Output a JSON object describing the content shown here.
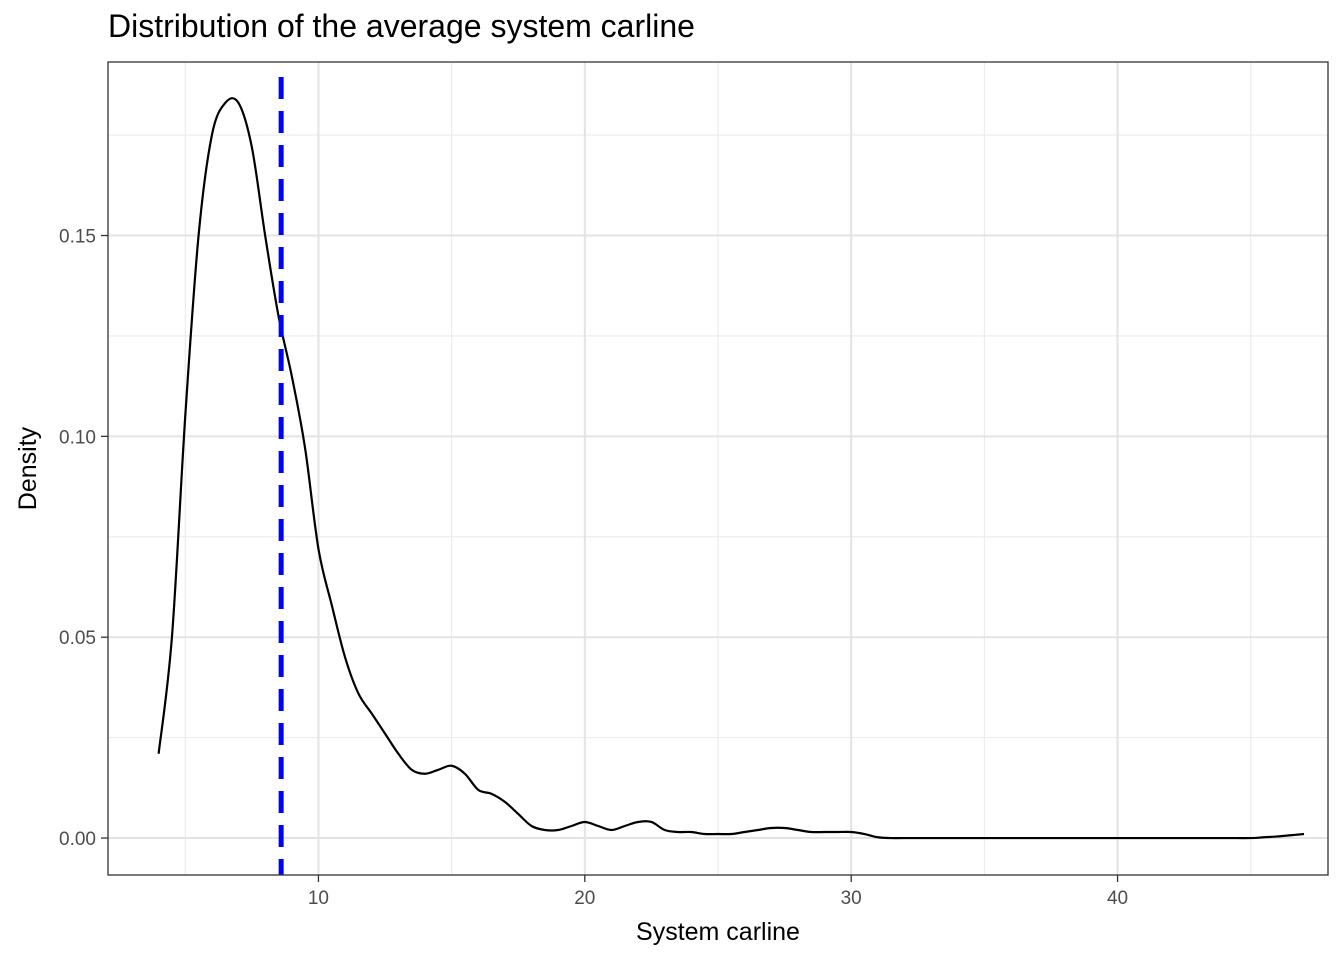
{
  "chart_data": {
    "type": "area",
    "title": "Distribution of the average system carline",
    "xlabel": "System carline",
    "ylabel": "Density",
    "xlim": [
      2.1,
      47.9
    ],
    "ylim": [
      -0.0092,
      0.1932
    ],
    "x_ticks": [
      10,
      20,
      30,
      40
    ],
    "x_tick_labels": [
      "10",
      "20",
      "30",
      "40"
    ],
    "x_minor_ticks": [
      5,
      15,
      25,
      35,
      45
    ],
    "y_ticks": [
      0.0,
      0.05,
      0.1,
      0.15
    ],
    "y_tick_labels": [
      "0.00",
      "0.05",
      "0.10",
      "0.15"
    ],
    "y_minor_ticks": [
      0.025,
      0.075,
      0.125,
      0.175
    ],
    "grid": true,
    "legend": "none",
    "series": [
      {
        "style": "line",
        "color": "#000000",
        "x": [
          4.0,
          4.5,
          5.0,
          5.5,
          6.0,
          6.5,
          7.0,
          7.5,
          8.0,
          8.5,
          9.0,
          9.5,
          10.0,
          10.5,
          11.0,
          11.5,
          12.0,
          12.5,
          13.0,
          13.5,
          14.0,
          14.5,
          15.0,
          15.5,
          16.0,
          16.5,
          17.0,
          17.5,
          18.0,
          18.5,
          19.0,
          19.5,
          20.0,
          20.5,
          21.0,
          21.5,
          22.0,
          22.5,
          23.0,
          23.5,
          24.0,
          24.5,
          25.0,
          25.5,
          26.0,
          26.5,
          27.0,
          27.5,
          28.0,
          28.5,
          29.0,
          29.5,
          30.0,
          30.5,
          31.0,
          31.5,
          32.0,
          34.0,
          36.0,
          38.0,
          40.0,
          42.0,
          44.0,
          45.0,
          45.5,
          46.0,
          46.5,
          47.0
        ],
        "y": [
          0.021,
          0.05,
          0.105,
          0.15,
          0.175,
          0.183,
          0.183,
          0.172,
          0.15,
          0.13,
          0.115,
          0.097,
          0.072,
          0.058,
          0.045,
          0.036,
          0.031,
          0.026,
          0.021,
          0.017,
          0.016,
          0.017,
          0.018,
          0.016,
          0.012,
          0.011,
          0.009,
          0.006,
          0.003,
          0.002,
          0.002,
          0.003,
          0.004,
          0.003,
          0.002,
          0.003,
          0.004,
          0.004,
          0.002,
          0.0015,
          0.0015,
          0.001,
          0.001,
          0.001,
          0.0015,
          0.002,
          0.0025,
          0.0025,
          0.002,
          0.0015,
          0.0015,
          0.0015,
          0.0015,
          0.001,
          0.0002,
          0.0,
          0.0,
          0.0,
          0.0,
          0.0,
          0.0,
          0.0,
          0.0,
          0.0,
          0.0002,
          0.0004,
          0.0007,
          0.001
        ]
      }
    ],
    "reference_line": {
      "orientation": "vertical",
      "x": 8.6,
      "color": "#0000ff",
      "style": "dashed"
    }
  }
}
